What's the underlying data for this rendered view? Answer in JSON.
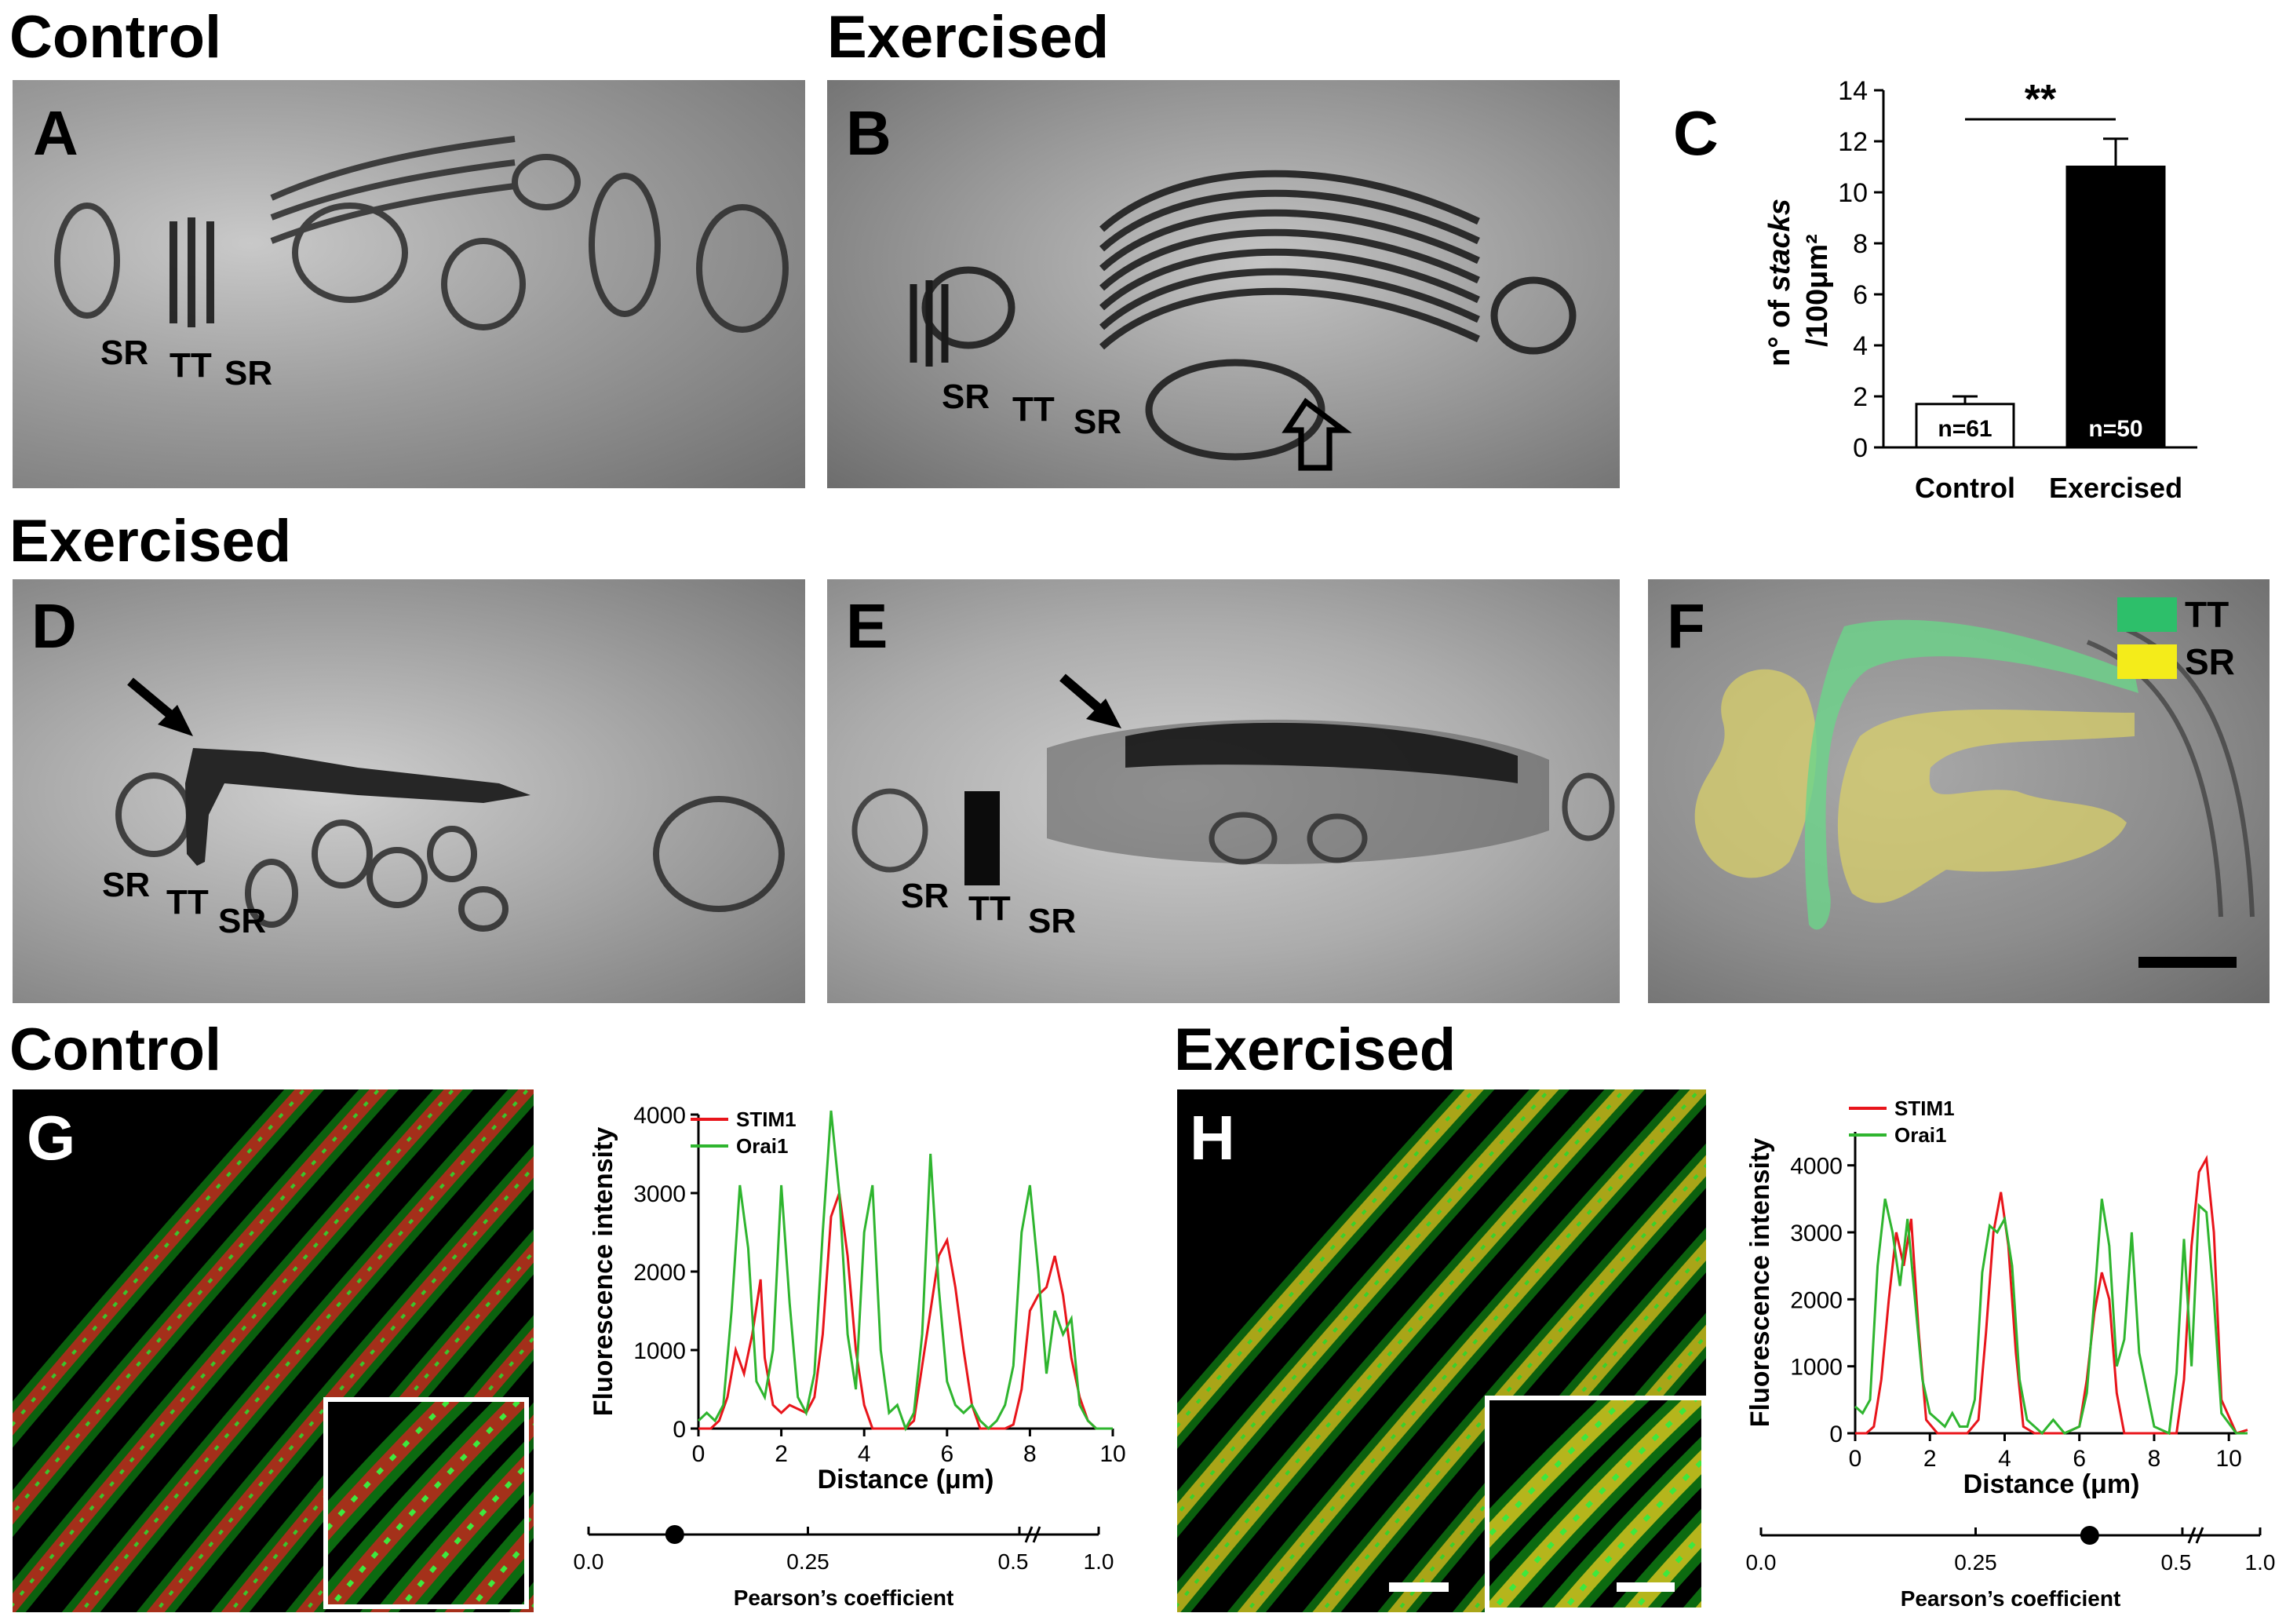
{
  "titles": {
    "top_left": "Control",
    "top_mid": "Exercised",
    "mid_left": "Exercised",
    "bottom_left": "Control",
    "bottom_right": "Exercised"
  },
  "panels": {
    "A": {
      "letter": "A",
      "labels": [
        "SR",
        "TT",
        "SR"
      ]
    },
    "B": {
      "letter": "B",
      "labels": [
        "SR",
        "TT",
        "SR"
      ]
    },
    "C": {
      "letter": "C"
    },
    "D": {
      "letter": "D",
      "labels": [
        "SR",
        "TT",
        "SR"
      ]
    },
    "E": {
      "letter": "E",
      "labels": [
        "SR",
        "TT",
        "SR"
      ]
    },
    "F": {
      "letter": "F",
      "legend": [
        {
          "label": "TT",
          "color": "#2dbf6a"
        },
        {
          "label": "SR",
          "color": "#f4ec1a"
        }
      ]
    },
    "G": {
      "letter": "G"
    },
    "H": {
      "letter": "H"
    }
  },
  "chart_data": [
    {
      "panel": "C",
      "type": "bar",
      "categories": [
        "Control",
        "Exercised"
      ],
      "values": [
        1.7,
        11.0
      ],
      "errors": [
        0.3,
        1.1
      ],
      "bar_labels": [
        "n=61",
        "n=50"
      ],
      "bar_colors": [
        "#ffffff",
        "#000000"
      ],
      "ylabel_prefix": "n° of ",
      "ylabel_italic": "stacks",
      "ylabel_line2": "/100μm²",
      "ylim": [
        0,
        14
      ],
      "yticks": [
        "0",
        "2",
        "4",
        "6",
        "8",
        "10",
        "12",
        "14"
      ],
      "significance": "**"
    },
    {
      "panel": "G",
      "type": "line",
      "xlabel": "Distance  (μm)",
      "ylabel": "Fluorescence intensity",
      "xlim": [
        0,
        10
      ],
      "ylim": [
        0,
        4000
      ],
      "xticks": [
        "0",
        "2",
        "4",
        "6",
        "8",
        "10"
      ],
      "yticks": [
        "0",
        "1000",
        "2000",
        "3000",
        "4000"
      ],
      "series": [
        {
          "name": "STIM1",
          "color": "#e8151b",
          "x": [
            0,
            0.3,
            0.5,
            0.7,
            0.9,
            1.1,
            1.3,
            1.5,
            1.6,
            1.8,
            2.0,
            2.2,
            2.4,
            2.6,
            2.8,
            3.0,
            3.2,
            3.4,
            3.6,
            3.8,
            4.0,
            4.2,
            4.4,
            4.6,
            4.8,
            5.0,
            5.2,
            5.4,
            5.6,
            5.8,
            6.0,
            6.2,
            6.4,
            6.6,
            6.8,
            7.0,
            7.2,
            7.4,
            7.6,
            7.8,
            8.0,
            8.2,
            8.4,
            8.6,
            8.8,
            9.0,
            9.2,
            9.4,
            9.6,
            10.0
          ],
          "y": [
            0,
            0,
            100,
            400,
            1000,
            700,
            1200,
            1900,
            900,
            300,
            200,
            300,
            250,
            200,
            400,
            1200,
            2700,
            3000,
            2200,
            1000,
            300,
            0,
            0,
            0,
            0,
            0,
            100,
            800,
            1500,
            2200,
            2400,
            1800,
            1000,
            300,
            0,
            0,
            0,
            0,
            50,
            500,
            1500,
            1700,
            1800,
            2200,
            1700,
            900,
            400,
            100,
            0,
            0
          ]
        },
        {
          "name": "Orai1",
          "color": "#2fb52f",
          "x": [
            0,
            0.2,
            0.4,
            0.6,
            0.8,
            1.0,
            1.2,
            1.4,
            1.6,
            1.8,
            2.0,
            2.2,
            2.4,
            2.6,
            2.8,
            3.0,
            3.2,
            3.4,
            3.6,
            3.8,
            4.0,
            4.2,
            4.4,
            4.6,
            4.8,
            5.0,
            5.2,
            5.4,
            5.6,
            5.8,
            6.0,
            6.2,
            6.4,
            6.6,
            6.8,
            7.0,
            7.2,
            7.4,
            7.6,
            7.8,
            8.0,
            8.2,
            8.4,
            8.6,
            8.8,
            9.0,
            9.2,
            9.4,
            9.6,
            10.0
          ],
          "y": [
            100,
            200,
            100,
            300,
            1500,
            3100,
            2300,
            600,
            400,
            1000,
            3100,
            1600,
            400,
            200,
            700,
            2500,
            4050,
            3000,
            1200,
            500,
            2500,
            3100,
            1000,
            200,
            300,
            0,
            200,
            1200,
            3500,
            1800,
            600,
            300,
            200,
            300,
            100,
            0,
            100,
            300,
            800,
            2500,
            3100,
            2000,
            700,
            1500,
            1200,
            1400,
            300,
            100,
            0,
            0
          ]
        }
      ],
      "pearson": {
        "label": "Pearson’s coefficient",
        "ticks": [
          "0.0",
          "0.25",
          "0.5",
          "1.0"
        ],
        "value": 0.1
      }
    },
    {
      "panel": "H",
      "type": "line",
      "xlabel": "Distance  (μm)",
      "ylabel": "Fluorescence intensity",
      "xlim": [
        0,
        10.5
      ],
      "ylim": [
        0,
        4500
      ],
      "xticks": [
        "0",
        "2",
        "4",
        "6",
        "8",
        "10"
      ],
      "yticks": [
        "0",
        "1000",
        "2000",
        "3000",
        "4000"
      ],
      "series": [
        {
          "name": "STIM1",
          "color": "#e8151b",
          "x": [
            0,
            0.3,
            0.5,
            0.7,
            0.9,
            1.1,
            1.3,
            1.5,
            1.7,
            1.9,
            2.2,
            2.5,
            3.0,
            3.3,
            3.5,
            3.7,
            3.9,
            4.1,
            4.3,
            4.5,
            4.8,
            5.2,
            5.6,
            6.0,
            6.2,
            6.4,
            6.6,
            6.8,
            7.0,
            7.2,
            7.5,
            8.0,
            8.4,
            8.6,
            8.8,
            9.0,
            9.2,
            9.4,
            9.6,
            9.8,
            10.2,
            10.5
          ],
          "y": [
            0,
            0,
            100,
            800,
            2000,
            3000,
            2500,
            3200,
            1500,
            200,
            0,
            0,
            0,
            200,
            1500,
            3000,
            3600,
            2800,
            1200,
            100,
            0,
            0,
            0,
            100,
            800,
            1800,
            2400,
            2000,
            600,
            0,
            0,
            0,
            0,
            0,
            800,
            2800,
            3900,
            4100,
            3000,
            500,
            0,
            50
          ]
        },
        {
          "name": "Orai1",
          "color": "#2fb52f",
          "x": [
            0,
            0.2,
            0.4,
            0.6,
            0.8,
            1.0,
            1.2,
            1.4,
            1.6,
            1.8,
            2.0,
            2.2,
            2.4,
            2.6,
            2.8,
            3.0,
            3.2,
            3.4,
            3.6,
            3.8,
            4.0,
            4.2,
            4.4,
            4.6,
            5.0,
            5.3,
            5.6,
            6.0,
            6.2,
            6.4,
            6.6,
            6.8,
            7.0,
            7.2,
            7.4,
            7.6,
            8.0,
            8.4,
            8.6,
            8.8,
            9.0,
            9.2,
            9.4,
            9.6,
            9.8,
            10.2,
            10.5
          ],
          "y": [
            400,
            300,
            500,
            2500,
            3500,
            3000,
            2200,
            3200,
            2000,
            800,
            300,
            200,
            100,
            300,
            100,
            100,
            500,
            2400,
            3100,
            3000,
            3200,
            2500,
            800,
            200,
            0,
            200,
            0,
            100,
            600,
            2000,
            3500,
            2800,
            1000,
            1400,
            3000,
            1200,
            100,
            0,
            900,
            2900,
            1000,
            3400,
            3300,
            2000,
            300,
            0,
            0
          ]
        }
      ],
      "pearson": {
        "label": "Pearson’s coefficient",
        "ticks": [
          "0.0",
          "0.25",
          "0.5",
          "1.0"
        ],
        "value": 0.39
      }
    }
  ]
}
